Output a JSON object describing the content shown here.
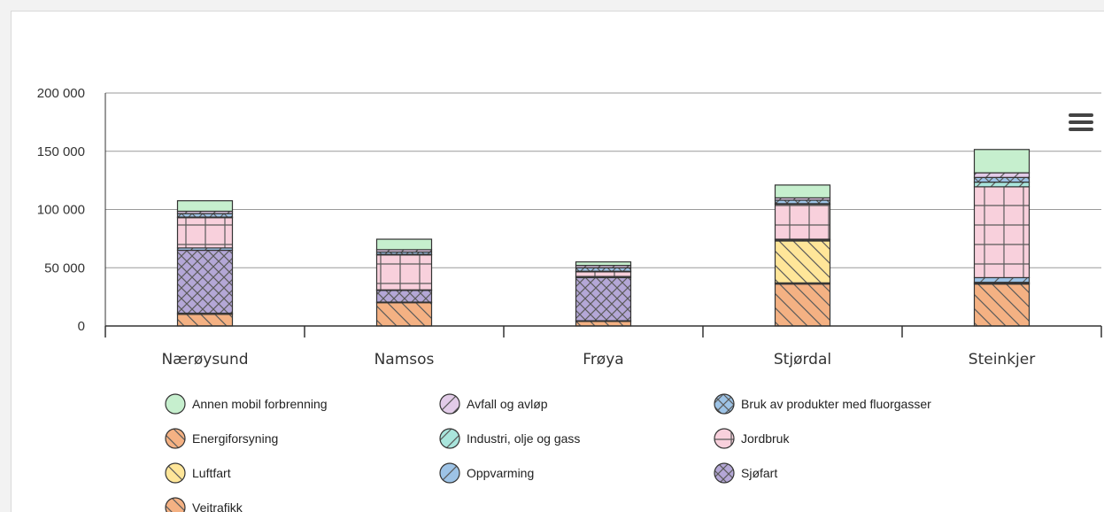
{
  "chart_data": {
    "type": "bar",
    "stacked": true,
    "categories": [
      "Nærøysund",
      "Namsos",
      "Frøya",
      "Stjørdal",
      "Steinkjer"
    ],
    "ylim": [
      0,
      200000
    ],
    "yticks": [
      0,
      50000,
      100000,
      150000,
      200000
    ],
    "ytick_labels": [
      "0",
      "50 000",
      "100 000",
      "150 000",
      "200 000"
    ],
    "grid": true,
    "legend_position": "bottom",
    "series": [
      {
        "name": "Veitrafikk",
        "color": "#f4b183",
        "pattern": "hatch-back",
        "values": [
          10000,
          20000,
          4000,
          36000,
          36000
        ]
      },
      {
        "name": "Energiforsyning",
        "color": "#f4b183",
        "pattern": "hatch-back-dense",
        "values": [
          1000,
          500,
          500,
          1000,
          500
        ]
      },
      {
        "name": "Luftfart",
        "color": "#ffe699",
        "pattern": "hatch-back",
        "values": [
          0,
          0,
          0,
          36000,
          0
        ]
      },
      {
        "name": "Sjøfart",
        "color": "#b4a7d6",
        "pattern": "crosshatch",
        "values": [
          54000,
          10000,
          37000,
          1000,
          1000
        ]
      },
      {
        "name": "Oppvarming",
        "color": "#9dc3e6",
        "pattern": "hatch-fwd",
        "values": [
          2000,
          500,
          1000,
          500,
          4000
        ]
      },
      {
        "name": "Jordbruk",
        "color": "#f8d0dc",
        "pattern": "grid",
        "values": [
          26000,
          30000,
          4000,
          30000,
          78000
        ]
      },
      {
        "name": "Industri, olje og gass",
        "color": "#a9e5dc",
        "pattern": "hatch-fwd",
        "values": [
          500,
          500,
          500,
          500,
          4000
        ]
      },
      {
        "name": "Bruk av produkter med fluorgasser",
        "color": "#9dc3e6",
        "pattern": "crosshatch",
        "values": [
          3000,
          2000,
          3000,
          3000,
          4000
        ]
      },
      {
        "name": "Avfall og avløp",
        "color": "#e2cbe8",
        "pattern": "hatch-fwd",
        "values": [
          2000,
          2000,
          2000,
          2000,
          4000
        ]
      },
      {
        "name": "Annen mobil forbrenning",
        "color": "#c6efce",
        "pattern": "none",
        "values": [
          9000,
          9000,
          3000,
          11000,
          20000
        ]
      }
    ],
    "legend_order": [
      "Annen mobil forbrenning",
      "Avfall og avløp",
      "Bruk av produkter med fluorgasser",
      "Energiforsyning",
      "Industri, olje og gass",
      "Jordbruk",
      "Luftfart",
      "Oppvarming",
      "Sjøfart",
      "Veitrafikk"
    ]
  },
  "menu_icon": "hamburger-menu-icon"
}
